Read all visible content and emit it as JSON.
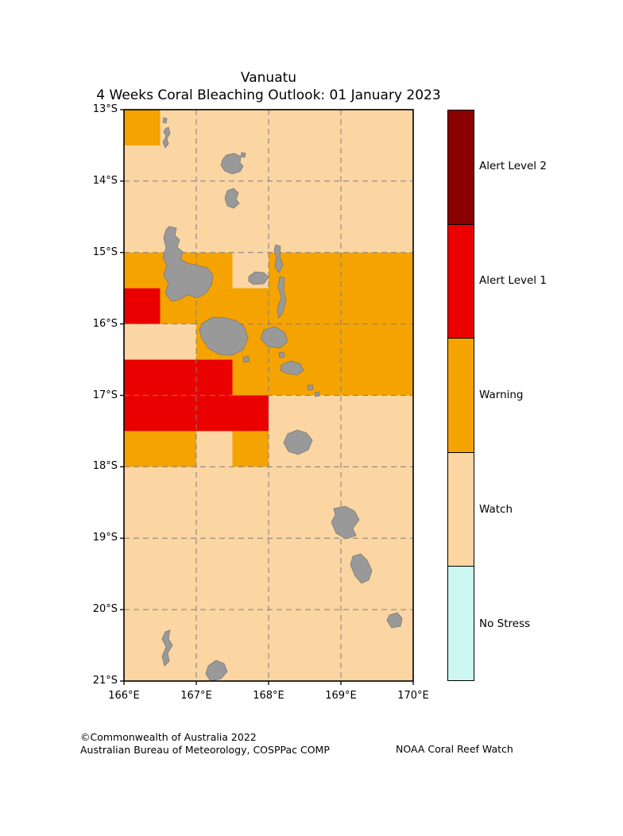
{
  "title": {
    "region": "Vanuatu",
    "subtitle": "4 Weeks Coral Bleaching Outlook: 01 January 2023"
  },
  "map": {
    "lon_range": [
      166,
      170
    ],
    "lat_range": [
      13,
      21
    ],
    "x_ticks": [
      "166°E",
      "167°E",
      "168°E",
      "169°E",
      "170°E"
    ],
    "y_ticks": [
      "13°S",
      "14°S",
      "15°S",
      "16°S",
      "17°S",
      "18°S",
      "19°S",
      "20°S",
      "21°S"
    ],
    "background_status": "Watch",
    "cells": [
      {
        "lon": [
          166,
          166.5
        ],
        "lat": [
          13,
          13.5
        ],
        "status": "Warning"
      },
      {
        "lon": [
          166,
          167.5
        ],
        "lat": [
          15,
          15.5
        ],
        "status": "Warning"
      },
      {
        "lon": [
          166,
          166.5
        ],
        "lat": [
          15.5,
          16
        ],
        "status": "Alert Level 1"
      },
      {
        "lon": [
          166.5,
          168
        ],
        "lat": [
          15.5,
          16
        ],
        "status": "Warning"
      },
      {
        "lon": [
          168,
          170
        ],
        "lat": [
          15,
          17
        ],
        "status": "Warning"
      },
      {
        "lon": [
          167,
          168
        ],
        "lat": [
          16,
          16.5
        ],
        "status": "Warning"
      },
      {
        "lon": [
          166,
          167.5
        ],
        "lat": [
          16.5,
          17
        ],
        "status": "Alert Level 1"
      },
      {
        "lon": [
          167.5,
          168
        ],
        "lat": [
          16.5,
          17
        ],
        "status": "Warning"
      },
      {
        "lon": [
          166,
          168
        ],
        "lat": [
          17,
          17.5
        ],
        "status": "Alert Level 1"
      },
      {
        "lon": [
          166,
          167
        ],
        "lat": [
          17.5,
          18
        ],
        "status": "Warning"
      },
      {
        "lon": [
          167.5,
          168
        ],
        "lat": [
          17.5,
          18
        ],
        "status": "Warning"
      }
    ]
  },
  "legend": {
    "entries": [
      {
        "label": "Alert Level 2",
        "color": "#8b0000"
      },
      {
        "label": "Alert Level 1",
        "color": "#eb0000"
      },
      {
        "label": "Warning",
        "color": "#f4a300"
      },
      {
        "label": "Watch",
        "color": "#fbd5a2"
      },
      {
        "label": "No Stress",
        "color": "#ccf6f0"
      }
    ]
  },
  "colors": {
    "land": "#999999",
    "land_outline": "#7a7a7a",
    "grid": "#7f7f7f",
    "border": "#000000"
  },
  "footer": {
    "line1": "©Commonwealth of Australia 2022",
    "line2": "Australian Bureau of Meteorology, COSPPac COMP",
    "credit": "NOAA Coral Reef Watch"
  }
}
